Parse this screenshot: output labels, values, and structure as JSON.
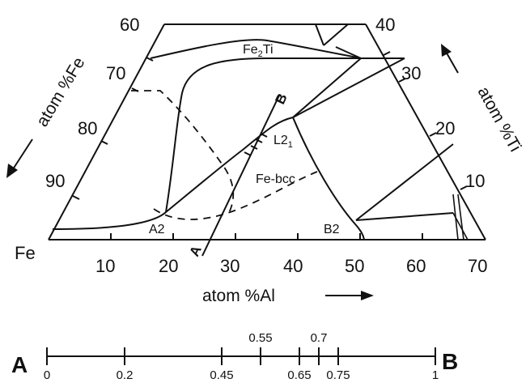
{
  "diagram": {
    "left_axis": {
      "title": "atom %Fe",
      "ticks": [
        "60",
        "70",
        "80",
        "90"
      ],
      "corner": "Fe"
    },
    "right_axis": {
      "title": "atom %Ti",
      "ticks": [
        "40",
        "30",
        "20",
        "10"
      ]
    },
    "bottom_axis": {
      "title": "atom %Al",
      "ticks": [
        "10",
        "20",
        "30",
        "40",
        "50",
        "60",
        "70"
      ]
    },
    "phases": {
      "fe2ti_main": "Fe",
      "fe2ti_sub": "2",
      "fe2ti_end": "Ti",
      "l21_main": "L2",
      "l21_sub": "1",
      "fe_bcc": "Fe-bcc",
      "a2": "A2",
      "b2": "B2"
    },
    "path": {
      "start": "A",
      "end": "B"
    }
  },
  "scale": {
    "start_label": "A",
    "end_label": "B",
    "below": [
      "0",
      "0.2",
      "0.45",
      "0.65",
      "0.75",
      "1"
    ],
    "above": [
      "0.55",
      "0.7"
    ],
    "below_values": [
      0,
      0.2,
      0.45,
      0.65,
      0.75,
      1
    ],
    "above_values": [
      0.55,
      0.7
    ]
  }
}
